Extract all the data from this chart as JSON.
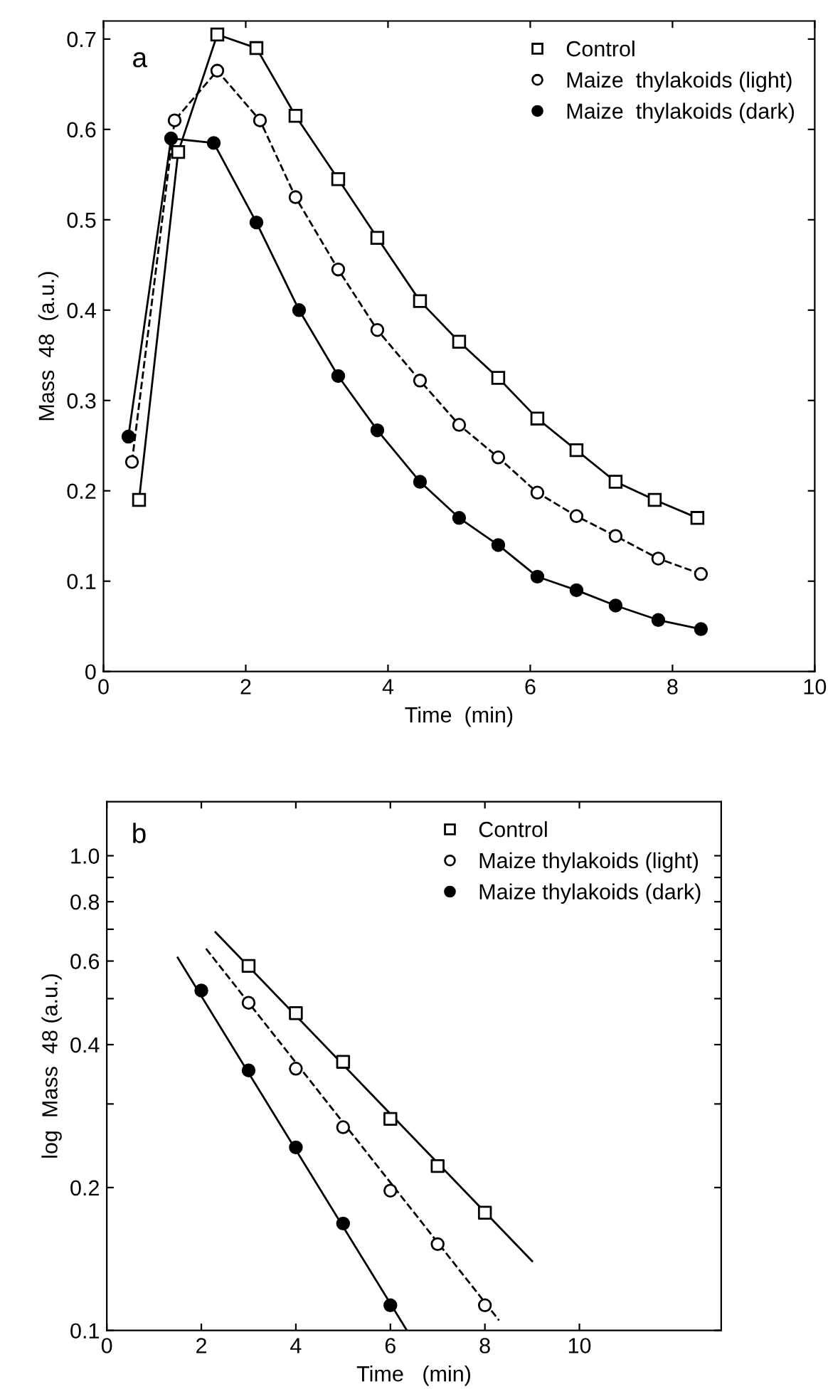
{
  "chart_data": [
    {
      "type": "line",
      "xlabel": "Time  (min)",
      "ylabel": "Mass  48  (a.u.)",
      "annotations": [
        "a"
      ],
      "xlim": [
        0,
        10
      ],
      "xticks": [
        0,
        2,
        4,
        6,
        8,
        10
      ],
      "ylim": [
        0,
        0.72
      ],
      "yticks": [
        {
          "value": 0,
          "label": "0"
        },
        0.1,
        0.2,
        0.3,
        0.4,
        0.5,
        0.6,
        0.7
      ],
      "legend": "top right",
      "grid": false,
      "series": [
        {
          "name": "Control",
          "color": "#ffffff",
          "marker": "square",
          "line_style": "solid",
          "x": [
            0.5,
            1.05,
            1.6,
            2.15,
            2.7,
            3.3,
            3.85,
            4.45,
            5.0,
            5.55,
            6.1,
            6.65,
            7.2,
            7.75,
            8.35
          ],
          "values": [
            0.19,
            0.575,
            0.705,
            0.69,
            0.615,
            0.545,
            0.48,
            0.41,
            0.365,
            0.325,
            0.28,
            0.245,
            0.21,
            0.19,
            0.17
          ]
        },
        {
          "name": "Maize  thylakoids (light)",
          "color": "#ffffff",
          "marker": "circle",
          "line_style": "dashed",
          "x": [
            0.4,
            1.0,
            1.6,
            2.2,
            2.7,
            3.3,
            3.85,
            4.45,
            5.0,
            5.55,
            6.1,
            6.65,
            7.2,
            7.8,
            8.4
          ],
          "values": [
            0.232,
            0.61,
            0.665,
            0.61,
            0.525,
            0.445,
            0.378,
            0.322,
            0.273,
            0.237,
            0.198,
            0.172,
            0.15,
            0.125,
            0.108
          ]
        },
        {
          "name": "Maize  thylakoids (dark)",
          "color": "#000000",
          "marker": "circle",
          "line_style": "solid",
          "x": [
            0.35,
            0.95,
            1.55,
            2.15,
            2.75,
            3.3,
            3.85,
            4.45,
            5.0,
            5.55,
            6.1,
            6.65,
            7.2,
            7.8,
            8.4
          ],
          "values": [
            0.26,
            0.59,
            0.585,
            0.497,
            0.4,
            0.327,
            0.267,
            0.21,
            0.17,
            0.14,
            0.105,
            0.09,
            0.073,
            0.057,
            0.047
          ]
        }
      ]
    },
    {
      "type": "scatter",
      "xlabel": "Time   (min)",
      "ylabel": "log  Mass  48 (a.u.)",
      "annotations": [
        "b"
      ],
      "log": "y",
      "xlim": [
        0,
        13
      ],
      "xticks": [
        0,
        2,
        4,
        6,
        8,
        10
      ],
      "ylim": [
        0.1,
        1.3
      ],
      "yticks": [
        0.1,
        0.2,
        {
          "value": 0.3,
          "label": null
        },
        0.4,
        {
          "value": 0.5,
          "label": null
        },
        0.6,
        {
          "value": 0.7,
          "label": null
        },
        0.8,
        {
          "value": 0.9,
          "label": null
        },
        {
          "value": 1.0,
          "label": "1.0"
        }
      ],
      "legend": "top right",
      "grid": false,
      "series": [
        {
          "name": "Control",
          "color": "#ffffff",
          "marker": "square",
          "x": [
            3,
            4,
            5,
            6,
            7,
            8
          ],
          "values": [
            0.586,
            0.466,
            0.368,
            0.279,
            0.222,
            0.177
          ]
        },
        {
          "name": "Maize thylakoids (light)",
          "color": "#ffffff",
          "marker": "circle",
          "x": [
            3,
            4,
            5,
            6,
            7,
            8
          ],
          "values": [
            0.49,
            0.356,
            0.268,
            0.197,
            0.152,
            0.113
          ]
        },
        {
          "name": "Maize thylakoids (dark)",
          "color": "#000000",
          "marker": "circle",
          "x": [
            2,
            3,
            4,
            5,
            6
          ],
          "values": [
            0.52,
            0.353,
            0.243,
            0.168,
            0.113
          ]
        },
        {
          "type": "line",
          "color": "#000000",
          "line_style": "solid",
          "x": [
            2.3,
            9.0
          ],
          "values": [
            0.69,
            0.14
          ]
        },
        {
          "type": "line",
          "color": "#000000",
          "line_style": "dashed",
          "x": [
            2.1,
            8.3
          ],
          "values": [
            0.637,
            0.105
          ]
        },
        {
          "type": "line",
          "color": "#000000",
          "line_style": "solid",
          "x": [
            1.5,
            6.35
          ],
          "values": [
            0.61,
            0.1
          ]
        }
      ]
    }
  ]
}
